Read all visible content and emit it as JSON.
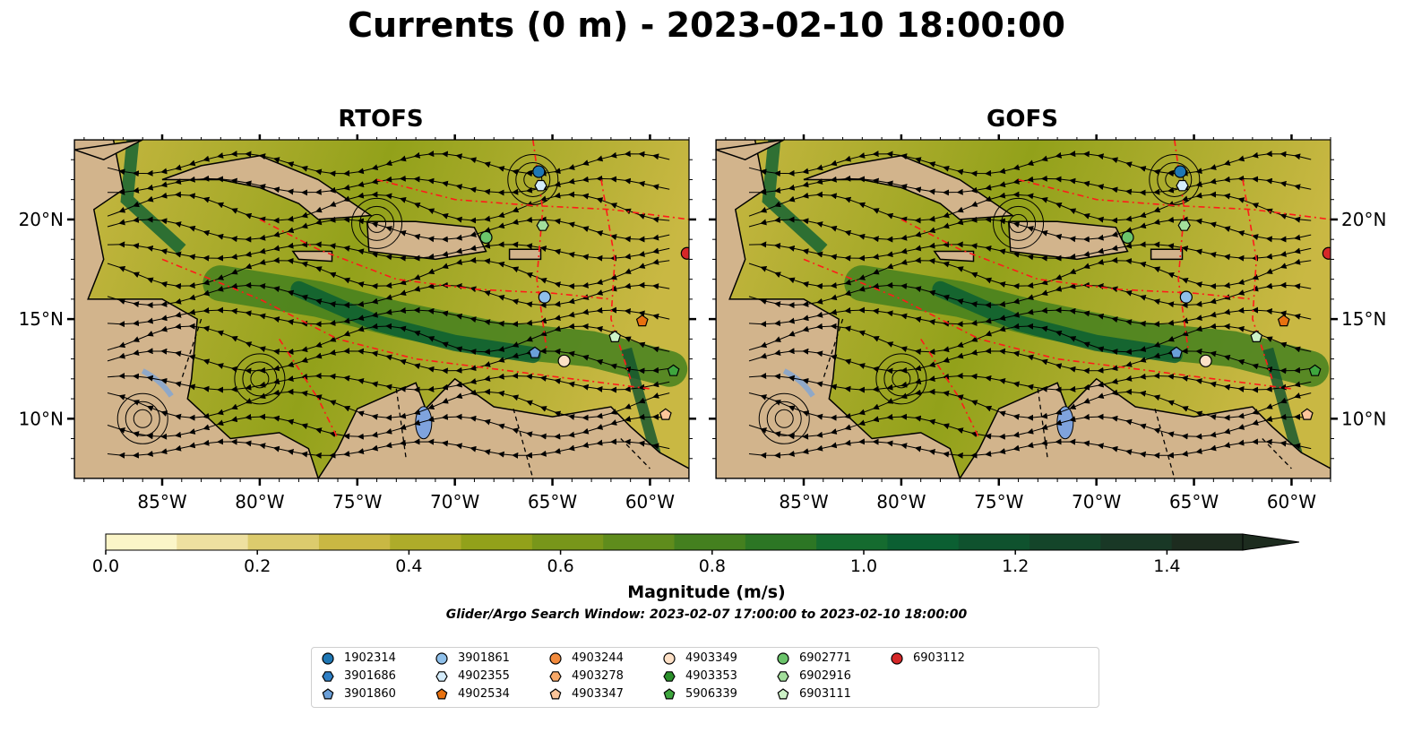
{
  "title": "Currents (0 m) - 2023-02-10 18:00:00",
  "panels": [
    {
      "name": "RTOFS"
    },
    {
      "name": "GOFS"
    }
  ],
  "axes": {
    "lon_ticks": [
      "85°W",
      "80°W",
      "75°W",
      "70°W",
      "65°W",
      "60°W"
    ],
    "lat_ticks": [
      "20°N",
      "15°N",
      "10°N"
    ],
    "lon_range": [
      -89.5,
      -58
    ],
    "lat_range": [
      7,
      24
    ]
  },
  "colorbar": {
    "label": "Magnitude (m/s)",
    "tick_labels": [
      "0.0",
      "0.2",
      "0.4",
      "0.6",
      "0.8",
      "1.0",
      "1.2",
      "1.4"
    ],
    "range": [
      0,
      1.5
    ],
    "colors": [
      "#fbf5c8",
      "#eee0a0",
      "#dccb6d",
      "#c9b843",
      "#aeac2a",
      "#92a11a",
      "#78961a",
      "#5f8c1c",
      "#44801f",
      "#2c7624",
      "#156b2f",
      "#0b5f32",
      "#0f522e",
      "#14452a",
      "#193826",
      "#1d2c1f"
    ]
  },
  "search_window": "Glider/Argo Search Window: 2023-02-07 17:00:00 to 2023-02-10 18:00:00",
  "floats": [
    {
      "id": "1902314",
      "color": "#1f77b4",
      "shape": "circle",
      "lon": -65.7,
      "lat": 22.4
    },
    {
      "id": "3901686",
      "color": "#2f7fc4",
      "shape": "hexagon",
      "lon": null,
      "lat": null
    },
    {
      "id": "3901860",
      "color": "#6a9fd8",
      "shape": "pentagon",
      "lon": -65.9,
      "lat": 13.3
    },
    {
      "id": "3901861",
      "color": "#8fc0ea",
      "shape": "circle",
      "lon": -65.4,
      "lat": 16.1
    },
    {
      "id": "4902355",
      "color": "#d4ecfb",
      "shape": "hexagon",
      "lon": -65.6,
      "lat": 21.7
    },
    {
      "id": "4902534",
      "color": "#e8710f",
      "shape": "pentagon",
      "lon": -60.4,
      "lat": 14.9
    },
    {
      "id": "4903244",
      "color": "#f28a3c",
      "shape": "circle",
      "lon": null,
      "lat": null
    },
    {
      "id": "4903278",
      "color": "#f7a868",
      "shape": "hexagon",
      "lon": null,
      "lat": null
    },
    {
      "id": "4903347",
      "color": "#fcc59a",
      "shape": "pentagon",
      "lon": -59.2,
      "lat": 10.2
    },
    {
      "id": "4903349",
      "color": "#fde0c6",
      "shape": "circle",
      "lon": -64.4,
      "lat": 12.9
    },
    {
      "id": "4903353",
      "color": "#2a8f2a",
      "shape": "hexagon",
      "lon": null,
      "lat": null
    },
    {
      "id": "5906339",
      "color": "#3ea63e",
      "shape": "pentagon",
      "lon": -58.8,
      "lat": 12.4
    },
    {
      "id": "6902771",
      "color": "#6bc46b",
      "shape": "circle",
      "lon": -68.4,
      "lat": 19.1
    },
    {
      "id": "6902916",
      "color": "#a3df9c",
      "shape": "hexagon",
      "lon": -65.5,
      "lat": 19.7
    },
    {
      "id": "6903111",
      "color": "#cdf2c7",
      "shape": "pentagon",
      "lon": -61.8,
      "lat": 14.1
    },
    {
      "id": "6903112",
      "color": "#d62728",
      "shape": "circle",
      "lon": -58.1,
      "lat": 18.3
    }
  ]
}
